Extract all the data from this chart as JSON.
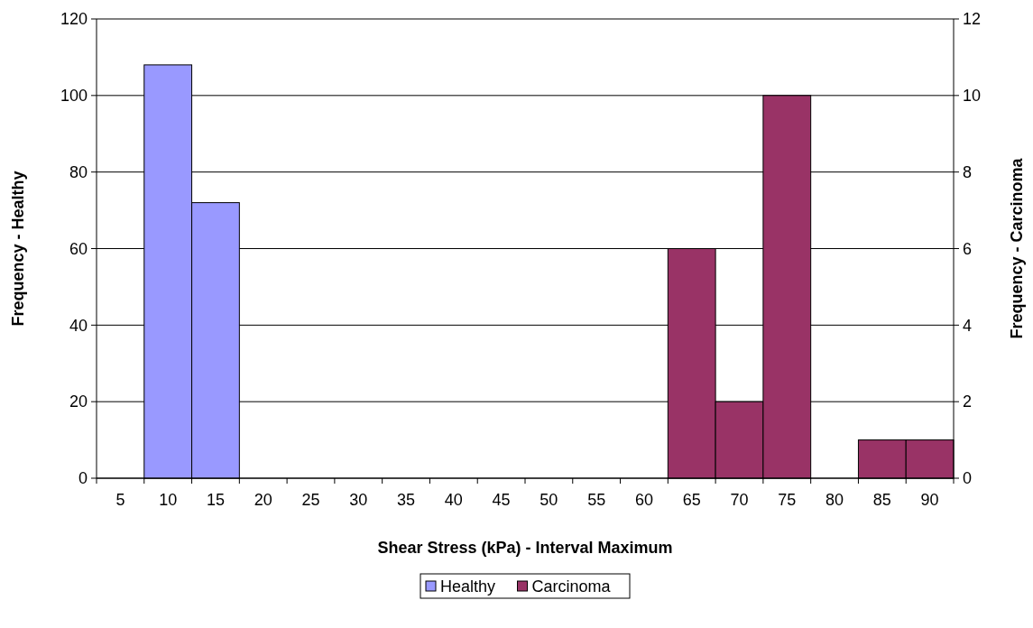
{
  "chart_data": {
    "type": "bar",
    "xlabel": "Shear Stress (kPa) - Interval Maximum",
    "ylabel": "Frequency - Healthy",
    "y2label": "Frequency - Carcinoma",
    "categories": [
      "5",
      "10",
      "15",
      "20",
      "25",
      "30",
      "35",
      "40",
      "45",
      "50",
      "55",
      "60",
      "65",
      "70",
      "75",
      "80",
      "85",
      "90"
    ],
    "series": [
      {
        "name": "Healthy",
        "color": "#9999ff",
        "values": [
          0,
          108,
          72,
          0,
          0,
          0,
          0,
          0,
          0,
          0,
          0,
          0,
          0,
          0,
          0,
          0,
          0,
          0
        ]
      },
      {
        "name": "Carcinoma",
        "color": "#993366",
        "axis": "y2",
        "values": [
          0,
          0,
          0,
          0,
          0,
          0,
          0,
          0,
          0,
          0,
          0,
          0,
          6,
          2,
          10,
          0,
          1,
          1
        ]
      }
    ],
    "ylim": [
      0,
      120
    ],
    "yticks": [
      0,
      20,
      40,
      60,
      80,
      100,
      120
    ],
    "y2lim": [
      0,
      12
    ],
    "y2ticks": [
      0,
      2,
      4,
      6,
      8,
      10,
      12
    ],
    "grid": "y",
    "legend": "bottom"
  }
}
